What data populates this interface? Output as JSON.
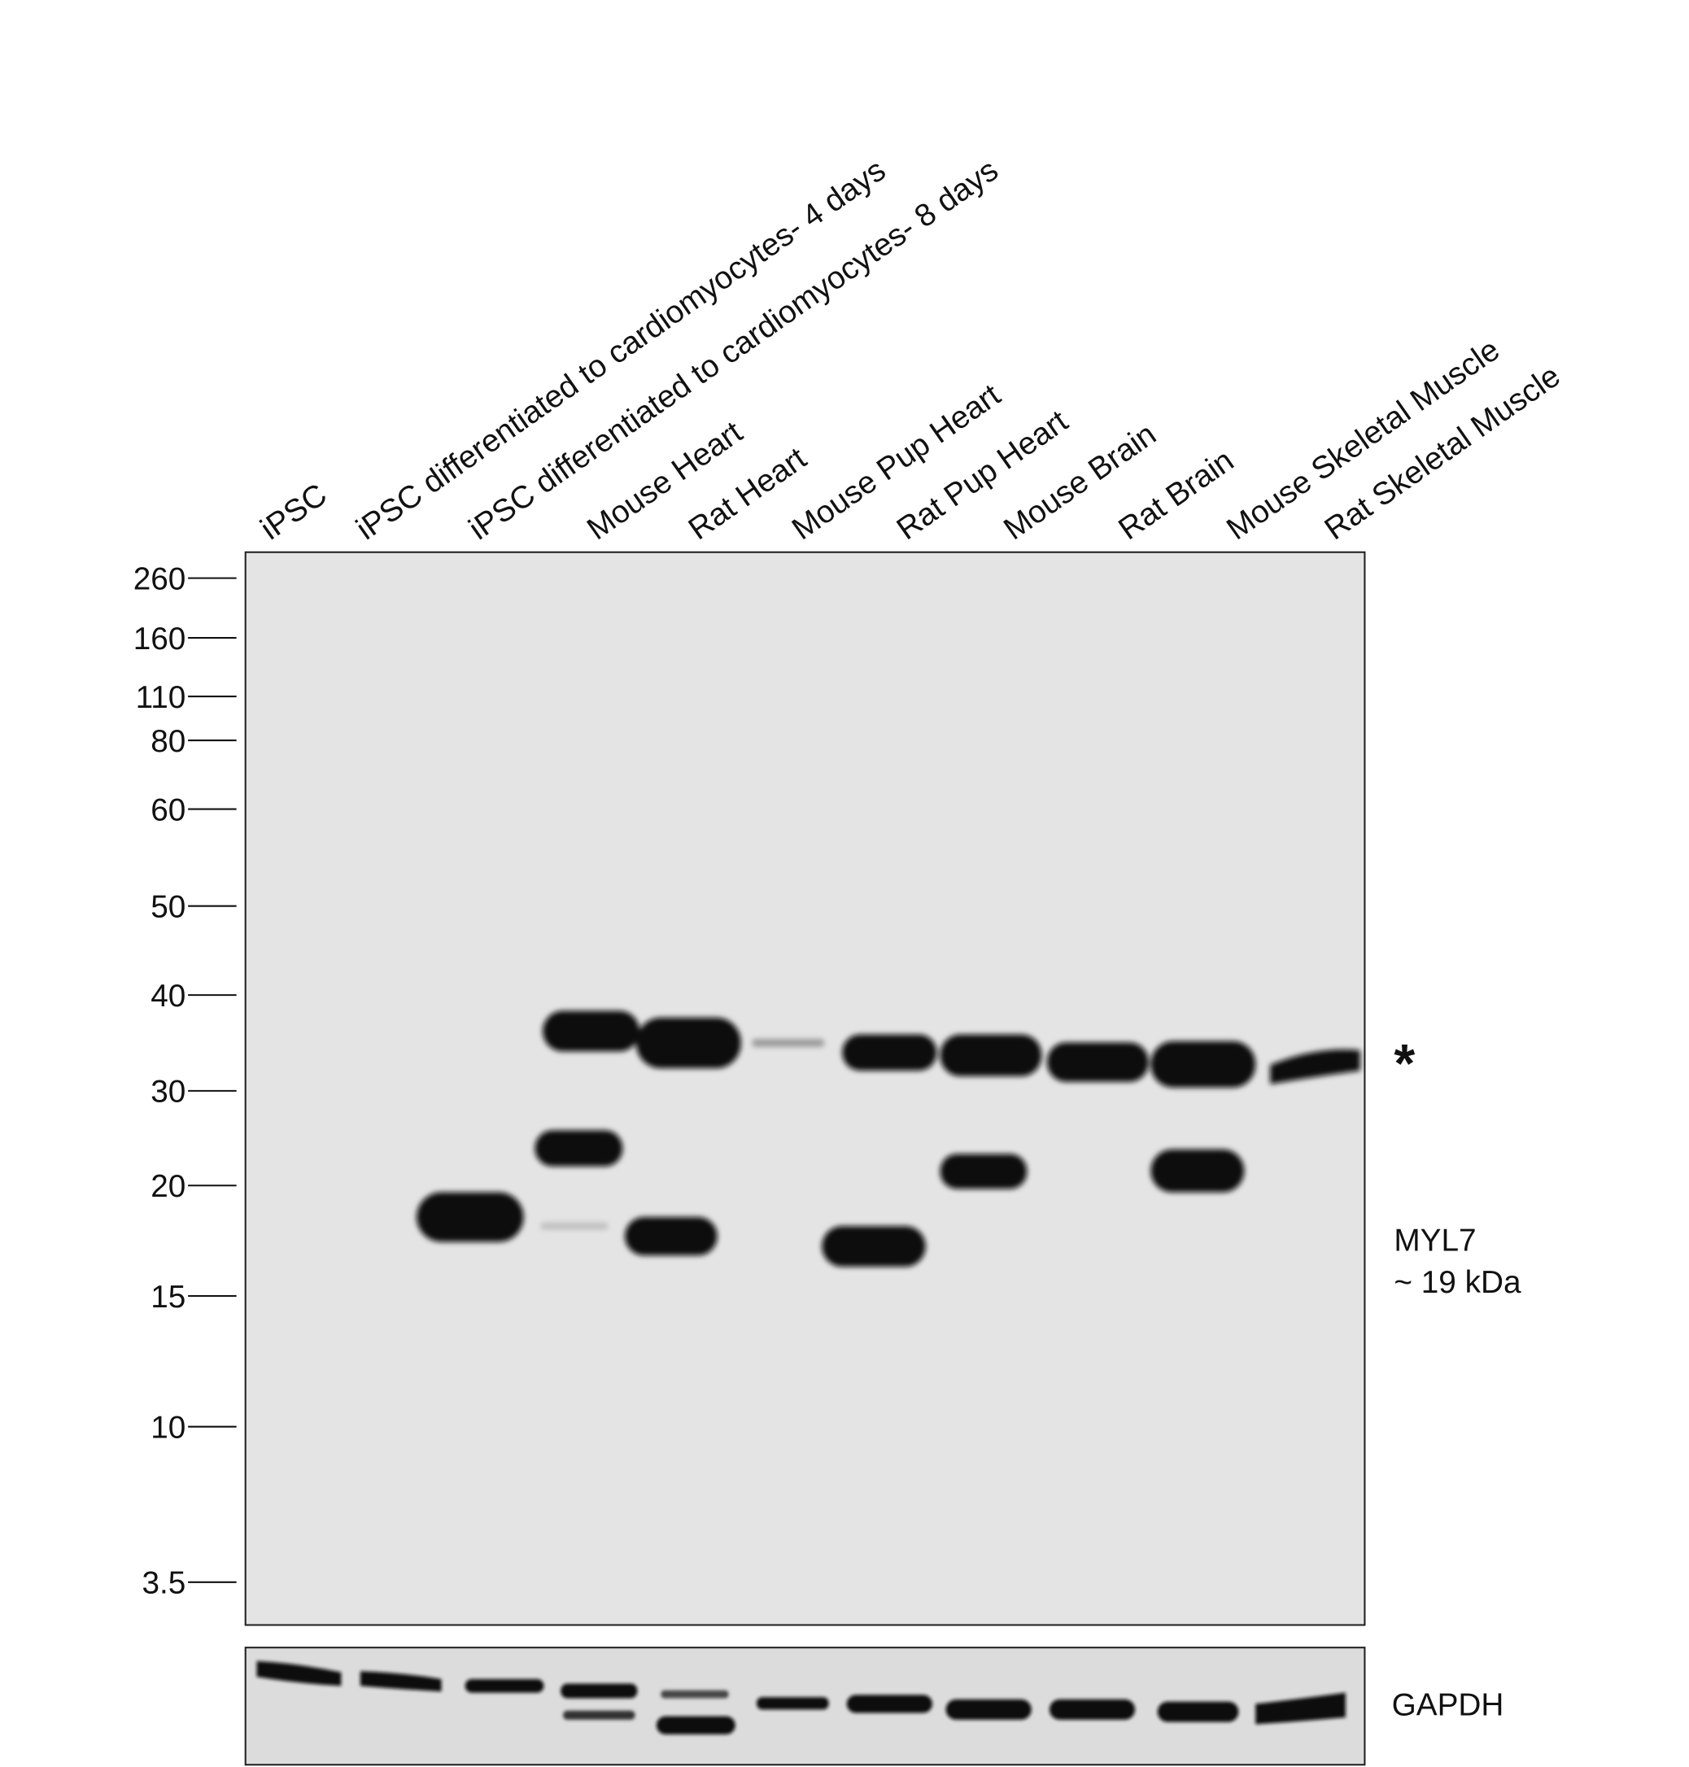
{
  "lanes": [
    "iPSC",
    "iPSC differentiated to cardiomyocytes- 4 days",
    "iPSC differentiated to cardiomyocytes- 8 days",
    "Mouse Heart",
    "Rat Heart",
    "Mouse Pup Heart",
    "Rat Pup Heart",
    "Mouse Brain",
    "Rat Brain",
    "Mouse Skeletal Muscle",
    "Rat Skeletal Muscle"
  ],
  "markers": [
    260,
    160,
    110,
    80,
    60,
    50,
    40,
    30,
    20,
    15,
    10,
    3.5
  ],
  "annotations": {
    "asterisk": "*",
    "target": "MYL7",
    "size": "~ 19 kDa",
    "loading_control": "GAPDH"
  }
}
